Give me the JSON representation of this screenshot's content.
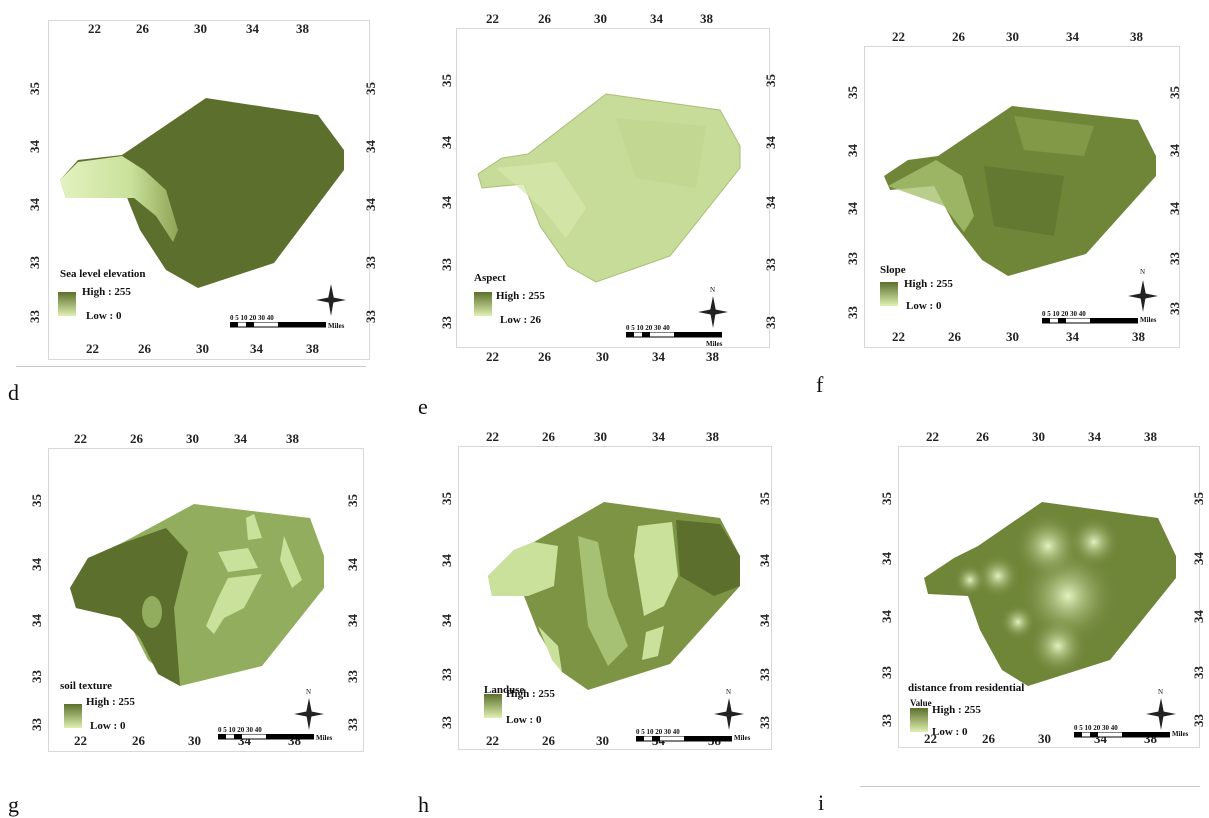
{
  "ticks": {
    "top": [
      "22",
      "26",
      "30",
      "34",
      "38"
    ],
    "bottom": [
      "22",
      "26",
      "30",
      "34",
      "38"
    ],
    "side": [
      "35",
      "34",
      "34",
      "33",
      "33"
    ]
  },
  "panels": [
    {
      "letter": "d",
      "title": "Sea level elevation",
      "sublabel": "",
      "high": "High : 255",
      "low": "Low : 0"
    },
    {
      "letter": "e",
      "title": "Aspect",
      "sublabel": "",
      "high": "High : 255",
      "low": "Low : 26"
    },
    {
      "letter": "f",
      "title": "Slope",
      "sublabel": "",
      "high": "High : 255",
      "low": "Low : 0"
    },
    {
      "letter": "g",
      "title": "soil texture",
      "sublabel": "",
      "high": "High : 255",
      "low": "Low : 0"
    },
    {
      "letter": "h",
      "title": "Landuse",
      "sublabel": "",
      "high": "High : 255",
      "low": "Low : 0"
    },
    {
      "letter": "i",
      "title": "distance from residential",
      "sublabel": "Value",
      "high": "High : 255",
      "low": "Low : 0"
    }
  ],
  "scale": {
    "numbers": "0   5  10     20     30     40",
    "unit": "Miles"
  },
  "north_label": "N",
  "colors": {
    "dark": "#5c6f2c",
    "mid": "#8fa456",
    "light": "#c9e19a",
    "pale": "#e4f2c0"
  }
}
